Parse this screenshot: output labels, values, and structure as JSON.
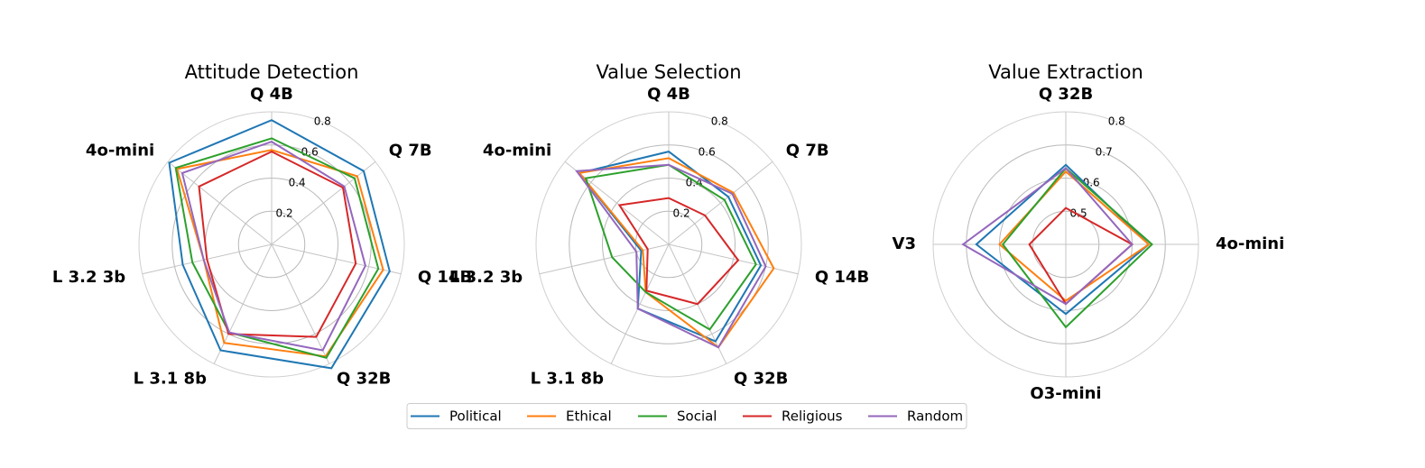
{
  "legend": [
    "Political",
    "Ethical",
    "Social",
    "Religious",
    "Random"
  ],
  "colors": {
    "Political": "#1f77b4",
    "Ethical": "#ff7f0e",
    "Social": "#2ca02c",
    "Religious": "#d62728",
    "Random": "#9467bd"
  },
  "chart_data": [
    {
      "type": "radar",
      "title": "Attitude Detection",
      "axes": [
        "Q 4B",
        "Q 7B",
        "Q 14B",
        "Q 32B",
        "L 3.1 8b",
        "L 3.2 3b",
        "4o-mini"
      ],
      "rlim": [
        0,
        0.8
      ],
      "ticks": [
        0.2,
        0.4,
        0.6,
        0.8
      ],
      "grid": true,
      "series": [
        {
          "name": "Political",
          "values": [
            0.75,
            0.71,
            0.73,
            0.83,
            0.71,
            0.55,
            0.79
          ]
        },
        {
          "name": "Ethical",
          "values": [
            0.57,
            0.66,
            0.69,
            0.75,
            0.66,
            0.42,
            0.73
          ]
        },
        {
          "name": "Social",
          "values": [
            0.64,
            0.64,
            0.66,
            0.76,
            0.59,
            0.49,
            0.74
          ]
        },
        {
          "name": "Religious",
          "values": [
            0.56,
            0.55,
            0.52,
            0.62,
            0.6,
            0.4,
            0.56
          ]
        },
        {
          "name": "Random",
          "values": [
            0.62,
            0.56,
            0.58,
            0.71,
            0.59,
            0.42,
            0.69
          ]
        }
      ]
    },
    {
      "type": "radar",
      "title": "Value Selection",
      "axes": [
        "Q 4B",
        "Q 7B",
        "Q 14B",
        "Q 32B",
        "L 3.1 8b",
        "L 3.2 3b",
        "4o-mini"
      ],
      "rlim": [
        0,
        0.8
      ],
      "ticks": [
        0.2,
        0.4,
        0.6,
        0.8
      ],
      "grid": true,
      "series": [
        {
          "name": "Political",
          "values": [
            0.56,
            0.46,
            0.57,
            0.65,
            0.43,
            0.17,
            0.69
          ]
        },
        {
          "name": "Ethical",
          "values": [
            0.52,
            0.5,
            0.65,
            0.69,
            0.32,
            0.16,
            0.69
          ]
        },
        {
          "name": "Social",
          "values": [
            0.48,
            0.43,
            0.54,
            0.57,
            0.32,
            0.35,
            0.64
          ]
        },
        {
          "name": "Religious",
          "values": [
            0.28,
            0.28,
            0.43,
            0.4,
            0.31,
            0.13,
            0.38
          ]
        },
        {
          "name": "Random",
          "values": [
            0.48,
            0.49,
            0.6,
            0.69,
            0.43,
            0.2,
            0.71
          ]
        }
      ]
    },
    {
      "type": "radar",
      "title": "Value Extraction",
      "axes": [
        "Q 32B",
        "4o-mini",
        "O3-mini",
        "V3"
      ],
      "rlim": [
        0.4,
        0.8
      ],
      "ticks": [
        0.5,
        0.6,
        0.7,
        0.8
      ],
      "grid": true,
      "series": [
        {
          "name": "Political",
          "values": [
            0.64,
            0.65,
            0.61,
            0.67
          ]
        },
        {
          "name": "Ethical",
          "values": [
            0.62,
            0.65,
            0.57,
            0.6
          ]
        },
        {
          "name": "Social",
          "values": [
            0.63,
            0.66,
            0.65,
            0.59
          ]
        },
        {
          "name": "Religious",
          "values": [
            0.51,
            0.6,
            0.58,
            0.51
          ]
        },
        {
          "name": "Random",
          "values": [
            0.63,
            0.6,
            0.58,
            0.71
          ]
        }
      ]
    }
  ]
}
